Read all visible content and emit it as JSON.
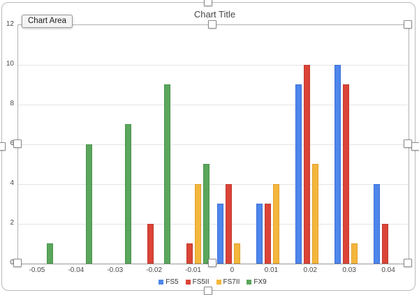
{
  "window": {
    "tooltip": "Chart Area"
  },
  "chart_data": {
    "type": "bar",
    "title": "Chart Title",
    "categories": [
      "-0.05",
      "-0.04",
      "-0.03",
      "-0.02",
      "-0.01",
      "0",
      "0.01",
      "0.02",
      "0.03",
      "0.04"
    ],
    "series": [
      {
        "name": "FS5",
        "color": "#4D86EC",
        "border": "#3A6FD8",
        "values": [
          0,
          0,
          0,
          0,
          0,
          3,
          3,
          9,
          10,
          4
        ]
      },
      {
        "name": "FS5II",
        "color": "#DB4437",
        "border": "#C0392C",
        "values": [
          0,
          0,
          0,
          2,
          1,
          4,
          3,
          10,
          9,
          2
        ]
      },
      {
        "name": "FS7II",
        "color": "#F4B63C",
        "border": "#DFA02A",
        "values": [
          0,
          0,
          0,
          0,
          4,
          1,
          4,
          5,
          1,
          0
        ]
      },
      {
        "name": "FX9",
        "color": "#5AA65C",
        "border": "#48934B",
        "values": [
          1,
          6,
          7,
          9,
          5,
          0,
          0,
          0,
          0,
          0
        ]
      }
    ],
    "ylim": [
      0,
      12
    ],
    "yticks": [
      0,
      2,
      4,
      6,
      8,
      10,
      12
    ],
    "grid": true,
    "legend_position": "bottom",
    "xlabel": "",
    "ylabel": ""
  }
}
